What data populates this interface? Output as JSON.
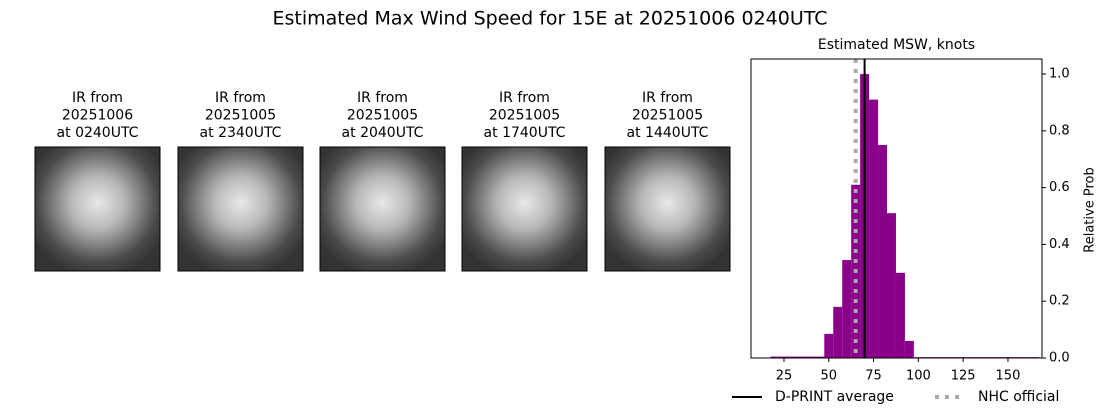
{
  "title": "Estimated Max Wind Speed for 15E at 20251006 0240UTC",
  "panels": [
    {
      "lines": [
        "IR from",
        "20251006",
        "at 0240UTC"
      ]
    },
    {
      "lines": [
        "IR from",
        "20251005",
        "at 2340UTC"
      ]
    },
    {
      "lines": [
        "IR from",
        "20251005",
        "at 2040UTC"
      ]
    },
    {
      "lines": [
        "IR from",
        "20251005",
        "at 1740UTC"
      ]
    },
    {
      "lines": [
        "IR from",
        "20251005",
        "at 1440UTC"
      ]
    }
  ],
  "chart_data": {
    "type": "histogram",
    "title": "Estimated MSW, knots",
    "y_label": "Relative Prob",
    "color": "#8b008b",
    "bins": [
      17.5,
      22.5,
      27.5,
      32.5,
      37.5,
      42.5,
      47.5,
      52.5,
      57.5,
      62.5,
      67.5,
      72.5,
      77.5,
      82.5,
      87.5,
      92.5,
      97.5,
      102.5,
      107.5,
      112.5,
      117.5,
      122.5,
      127.5,
      132.5,
      137.5,
      142.5,
      147.5,
      152.5,
      157.5,
      162.5,
      167.5
    ],
    "values": [
      0.005,
      0.005,
      0.005,
      0.005,
      0.005,
      0.005,
      0.085,
      0.18,
      0.345,
      0.61,
      1.0,
      0.91,
      0.75,
      0.51,
      0.3,
      0.06,
      0.003,
      0.003,
      0.003,
      0.003,
      0.003,
      0.003,
      0.003,
      0.003,
      0.003,
      0.003,
      0.003,
      0.003,
      0.003,
      0.003
    ],
    "xlim": [
      6.6,
      169
    ],
    "ylim": [
      0,
      1.053
    ],
    "xticks": [
      25,
      50,
      75,
      100,
      125,
      150
    ],
    "yticks": [
      {
        "value": 0,
        "label": "0.0"
      },
      0.2,
      0.4,
      0.6,
      0.8,
      {
        "value": 1,
        "label": "1.0"
      }
    ],
    "lines": [
      {
        "name": "D-PRINT average",
        "x": 70,
        "color": "#000000",
        "style": "solid"
      },
      {
        "name": "NHC official",
        "x": 65,
        "color": "#aaaaaa",
        "style": "dotted"
      }
    ]
  }
}
